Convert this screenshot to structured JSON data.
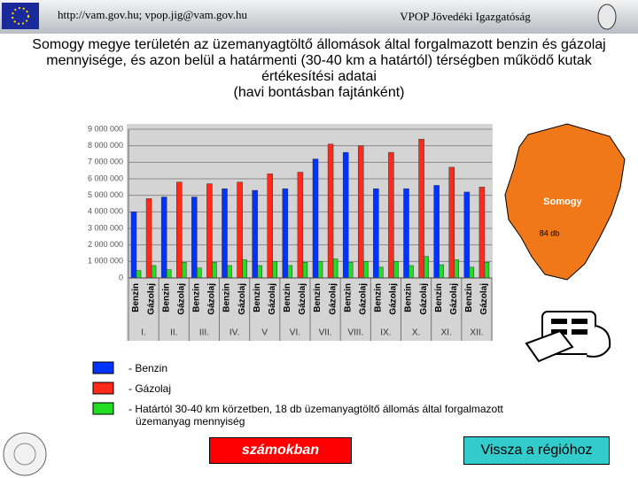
{
  "header": {
    "url": "http://vam.gov.hu; vpop.jig@vam.gov.hu",
    "org": "VPOP Jövedéki Igazgatóság"
  },
  "chart_data": {
    "type": "bar",
    "title": [
      "Somogy megye területén az üzemanyagtöltő állomások által forgalmazott benzin és gázolaj",
      "mennyisége, és azon belül a határmenti (30-40 km a határtól) térségben működő kutak",
      "értékesítési adatai",
      "(havi bontásban fajtánként)"
    ],
    "categories": [
      "Benzin",
      "Gázolaj",
      "Benzin",
      "Gázolaj",
      "Benzin",
      "Gázolaj",
      "Benzin",
      "Gázolaj",
      "Benzin",
      "Gázolaj",
      "Benzin",
      "Gázolaj",
      "Benzin",
      "Gázolaj",
      "Benzin",
      "Gázolaj",
      "Benzin",
      "Gázolaj",
      "Benzin",
      "Gázolaj",
      "Benzin",
      "Gázolaj",
      "Benzin",
      "Gázolaj"
    ],
    "groups": [
      "I.",
      "II.",
      "III.",
      "IV.",
      "V",
      "VI.",
      "VII.",
      "VIII.",
      "IX.",
      "X.",
      "XI.",
      "XII."
    ],
    "series": [
      {
        "name": "- Benzin",
        "color": "#0033ff",
        "values": [
          4000000,
          null,
          4900000,
          null,
          4900000,
          null,
          5400000,
          null,
          5300000,
          null,
          5400000,
          null,
          7200000,
          null,
          7600000,
          null,
          5400000,
          null,
          5400000,
          null,
          5600000,
          null,
          5200000,
          null
        ]
      },
      {
        "name": "- Gázolaj",
        "color": "#ff2a1a",
        "values": [
          null,
          4800000,
          null,
          5800000,
          null,
          5700000,
          null,
          5800000,
          null,
          6300000,
          null,
          6400000,
          null,
          8100000,
          null,
          8000000,
          null,
          7600000,
          null,
          8400000,
          null,
          6700000,
          null,
          5500000
        ]
      },
      {
        "name": "- Határtól 30-40 km körzetben, 18 db üzemanyagtöltő állomás által forgalmazott üzemanyag mennyiség",
        "color": "#22dd22",
        "values": [
          450000,
          750000,
          500000,
          950000,
          600000,
          950000,
          750000,
          1100000,
          750000,
          1000000,
          750000,
          950000,
          1000000,
          1150000,
          950000,
          1000000,
          650000,
          1000000,
          750000,
          1300000,
          800000,
          1100000,
          650000,
          950000
        ]
      }
    ],
    "ylim": [
      0,
      9000000
    ],
    "yticks": [
      0,
      {
        "value": 1000000,
        "label": "1 000 000"
      },
      {
        "value": 2000000,
        "label": "2 000 000"
      },
      {
        "value": 3000000,
        "label": "3 000 000"
      },
      {
        "value": 4000000,
        "label": "4 000 000"
      },
      {
        "value": 5000000,
        "label": "5 000 000"
      },
      {
        "value": 6000000,
        "label": "6 000 000"
      },
      {
        "value": 7000000,
        "label": "7 000 000"
      },
      {
        "value": 8000000,
        "label": "8 000 000"
      },
      {
        "value": 9000000,
        "label": "9 000 000"
      }
    ],
    "grid": true
  },
  "map": {
    "region": "Somogy",
    "count": "84 db"
  },
  "buttons": [
    "számokban",
    "Vissza a régióhoz"
  ]
}
